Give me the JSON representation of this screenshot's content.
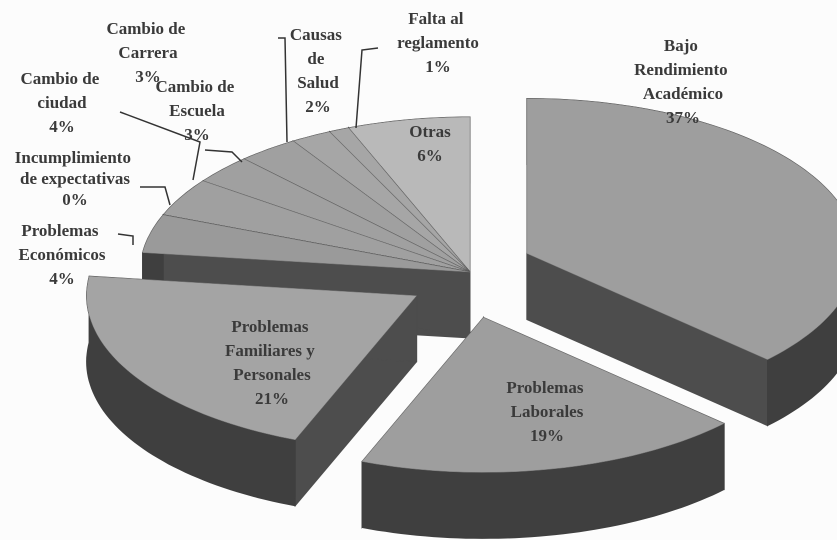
{
  "chart_data": {
    "type": "pie3d",
    "categories": [
      "Bajo Rendimiento Académico",
      "Problemas Laborales",
      "Problemas Familiares y Personales",
      "Problemas Económicos",
      "Incumplimiento de expectativas",
      "Cambio de ciudad",
      "Cambio de Carrera",
      "Cambio de Escuela",
      "Causas de Salud",
      "Falta al reglamento",
      "Otras"
    ],
    "values": [
      37,
      19,
      21,
      4,
      0,
      4,
      3,
      3,
      2,
      1,
      6
    ],
    "value_labels": [
      "37%",
      "19%",
      "21%",
      "4%",
      "0%",
      "4%",
      "3%",
      "3%",
      "2%",
      "1%",
      "6%"
    ],
    "colors": [
      "#9e9e9e",
      "#9e9e9e",
      "#a4a4a4",
      "#9a9a9a",
      "#9a9a9a",
      "#a0a0a0",
      "#a0a0a0",
      "#a0a0a0",
      "#a6a6a6",
      "#a6a6a6",
      "#b9b9b9"
    ],
    "side_color": "#4d4d4d"
  }
}
